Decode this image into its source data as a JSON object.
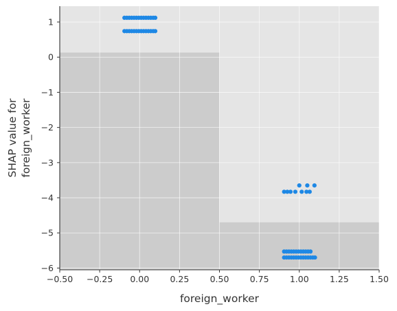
{
  "chart_data": {
    "type": "scatter",
    "title": "",
    "xlabel": "foreign_worker",
    "ylabel_lines": [
      "SHAP value for",
      "foreign_worker"
    ],
    "xlim": [
      -0.5,
      1.5
    ],
    "ylim": [
      -6.05,
      1.45
    ],
    "grid": true,
    "x_ticks": [
      -0.5,
      -0.25,
      0.0,
      0.25,
      0.5,
      0.75,
      1.0,
      1.25,
      1.5
    ],
    "x_tick_labels": [
      "−0.50",
      "−0.25",
      "0.00",
      "0.25",
      "0.50",
      "0.75",
      "1.00",
      "1.25",
      "1.50"
    ],
    "y_ticks": [
      1,
      0,
      -1,
      -2,
      -3,
      -4,
      -5,
      -6
    ],
    "y_tick_labels": [
      "1",
      "0",
      "−1",
      "−2",
      "−3",
      "−4",
      "−5",
      "−6"
    ],
    "background_bars": [
      {
        "x0": -0.5,
        "x1": 0.5,
        "y_top": 0.13
      },
      {
        "x0": 0.5,
        "x1": 1.5,
        "y_top": -4.7
      }
    ],
    "series": [
      {
        "color": "#1e88e5",
        "points": [
          {
            "x": -0.095,
            "y": 1.12
          },
          {
            "x": -0.08,
            "y": 1.12
          },
          {
            "x": -0.065,
            "y": 1.12
          },
          {
            "x": -0.05,
            "y": 1.12
          },
          {
            "x": -0.035,
            "y": 1.12
          },
          {
            "x": -0.02,
            "y": 1.12
          },
          {
            "x": -0.005,
            "y": 1.12
          },
          {
            "x": 0.01,
            "y": 1.12
          },
          {
            "x": 0.025,
            "y": 1.12
          },
          {
            "x": 0.04,
            "y": 1.12
          },
          {
            "x": 0.055,
            "y": 1.12
          },
          {
            "x": 0.07,
            "y": 1.12
          },
          {
            "x": 0.085,
            "y": 1.12
          },
          {
            "x": 0.098,
            "y": 1.12
          },
          {
            "x": -0.095,
            "y": 0.74
          },
          {
            "x": -0.08,
            "y": 0.74
          },
          {
            "x": -0.065,
            "y": 0.74
          },
          {
            "x": -0.05,
            "y": 0.74
          },
          {
            "x": -0.035,
            "y": 0.74
          },
          {
            "x": -0.02,
            "y": 0.74
          },
          {
            "x": -0.005,
            "y": 0.74
          },
          {
            "x": 0.01,
            "y": 0.74
          },
          {
            "x": 0.025,
            "y": 0.74
          },
          {
            "x": 0.04,
            "y": 0.74
          },
          {
            "x": 0.055,
            "y": 0.74
          },
          {
            "x": 0.07,
            "y": 0.74
          },
          {
            "x": 0.085,
            "y": 0.74
          },
          {
            "x": 0.098,
            "y": 0.74
          },
          {
            "x": 1.0,
            "y": -3.65
          },
          {
            "x": 1.05,
            "y": -3.65
          },
          {
            "x": 1.095,
            "y": -3.65
          },
          {
            "x": 0.905,
            "y": -3.83
          },
          {
            "x": 0.925,
            "y": -3.83
          },
          {
            "x": 0.945,
            "y": -3.83
          },
          {
            "x": 0.975,
            "y": -3.83
          },
          {
            "x": 1.015,
            "y": -3.83
          },
          {
            "x": 1.045,
            "y": -3.83
          },
          {
            "x": 1.065,
            "y": -3.83
          },
          {
            "x": 0.905,
            "y": -5.53
          },
          {
            "x": 0.92,
            "y": -5.53
          },
          {
            "x": 0.935,
            "y": -5.53
          },
          {
            "x": 0.95,
            "y": -5.53
          },
          {
            "x": 0.965,
            "y": -5.53
          },
          {
            "x": 0.98,
            "y": -5.53
          },
          {
            "x": 0.995,
            "y": -5.53
          },
          {
            "x": 1.01,
            "y": -5.53
          },
          {
            "x": 1.025,
            "y": -5.53
          },
          {
            "x": 1.04,
            "y": -5.53
          },
          {
            "x": 1.055,
            "y": -5.53
          },
          {
            "x": 1.07,
            "y": -5.53
          },
          {
            "x": 0.905,
            "y": -5.7
          },
          {
            "x": 0.92,
            "y": -5.7
          },
          {
            "x": 0.935,
            "y": -5.7
          },
          {
            "x": 0.95,
            "y": -5.7
          },
          {
            "x": 0.965,
            "y": -5.7
          },
          {
            "x": 0.98,
            "y": -5.7
          },
          {
            "x": 0.995,
            "y": -5.7
          },
          {
            "x": 1.01,
            "y": -5.7
          },
          {
            "x": 1.025,
            "y": -5.7
          },
          {
            "x": 1.04,
            "y": -5.7
          },
          {
            "x": 1.055,
            "y": -5.7
          },
          {
            "x": 1.07,
            "y": -5.7
          },
          {
            "x": 1.085,
            "y": -5.7
          },
          {
            "x": 1.098,
            "y": -5.7
          }
        ]
      }
    ],
    "colors": {
      "plot_background": "#e5e5e5",
      "bar": "#cccccc",
      "grid": "#ffffff",
      "axis": "#333333",
      "points": "#1e88e5"
    }
  }
}
